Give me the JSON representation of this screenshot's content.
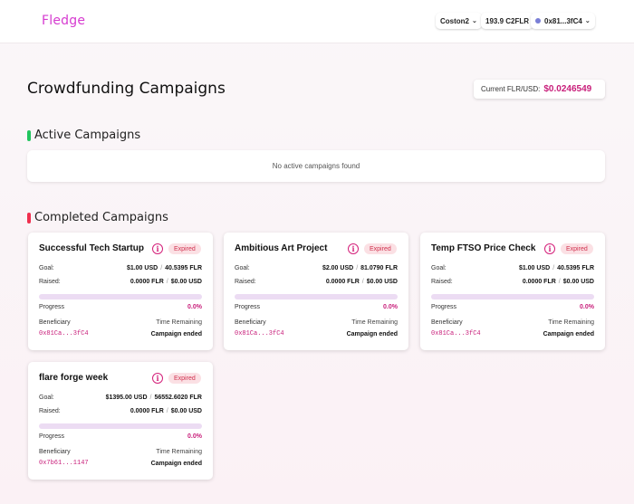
{
  "header": {
    "logo": "Fledge",
    "network": "Coston2",
    "balance": "193.9 C2FLR",
    "account": "0x81...3fC4",
    "chevron": "⌄"
  },
  "page": {
    "title": "Crowdfunding Campaigns",
    "price_label": "Current FLR/USD:",
    "price_value": "$0.0246549"
  },
  "active": {
    "title": "Active Campaigns",
    "empty_text": "No active campaigns found",
    "accent": "#22c55e"
  },
  "completed": {
    "title": "Completed Campaigns",
    "accent": "#ef2f4f",
    "labels": {
      "goal": "Goal:",
      "raised": "Raised:",
      "progress": "Progress",
      "beneficiary": "Beneficiary",
      "time_remaining": "Time Remaining",
      "sep": "/"
    },
    "campaigns": [
      {
        "title": "Successful Tech Startup",
        "badge": "Expired",
        "goal_usd": "$1.00 USD",
        "goal_flr": "40.5395 FLR",
        "raised_flr": "0.0000 FLR",
        "raised_usd": "$0.00 USD",
        "progress": 0,
        "progress_text": "0.0%",
        "beneficiary": "0x81Ca...3fC4",
        "time": "Campaign ended"
      },
      {
        "title": "Ambitious Art Project",
        "badge": "Expired",
        "goal_usd": "$2.00 USD",
        "goal_flr": "81.0790 FLR",
        "raised_flr": "0.0000 FLR",
        "raised_usd": "$0.00 USD",
        "progress": 0,
        "progress_text": "0.0%",
        "beneficiary": "0x81Ca...3fC4",
        "time": "Campaign ended"
      },
      {
        "title": "Temp FTSO Price Check",
        "badge": "Expired",
        "goal_usd": "$1.00 USD",
        "goal_flr": "40.5395 FLR",
        "raised_flr": "0.0000 FLR",
        "raised_usd": "$0.00 USD",
        "progress": 0,
        "progress_text": "0.0%",
        "beneficiary": "0x81Ca...3fC4",
        "time": "Campaign ended"
      },
      {
        "title": "flare forge week",
        "badge": "Expired",
        "goal_usd": "$1395.00 USD",
        "goal_flr": "56552.6020 FLR",
        "raised_flr": "0.0000 FLR",
        "raised_usd": "$0.00 USD",
        "progress": 0,
        "progress_text": "0.0%",
        "beneficiary": "0x7b61...1147",
        "time": "Campaign ended"
      }
    ]
  }
}
